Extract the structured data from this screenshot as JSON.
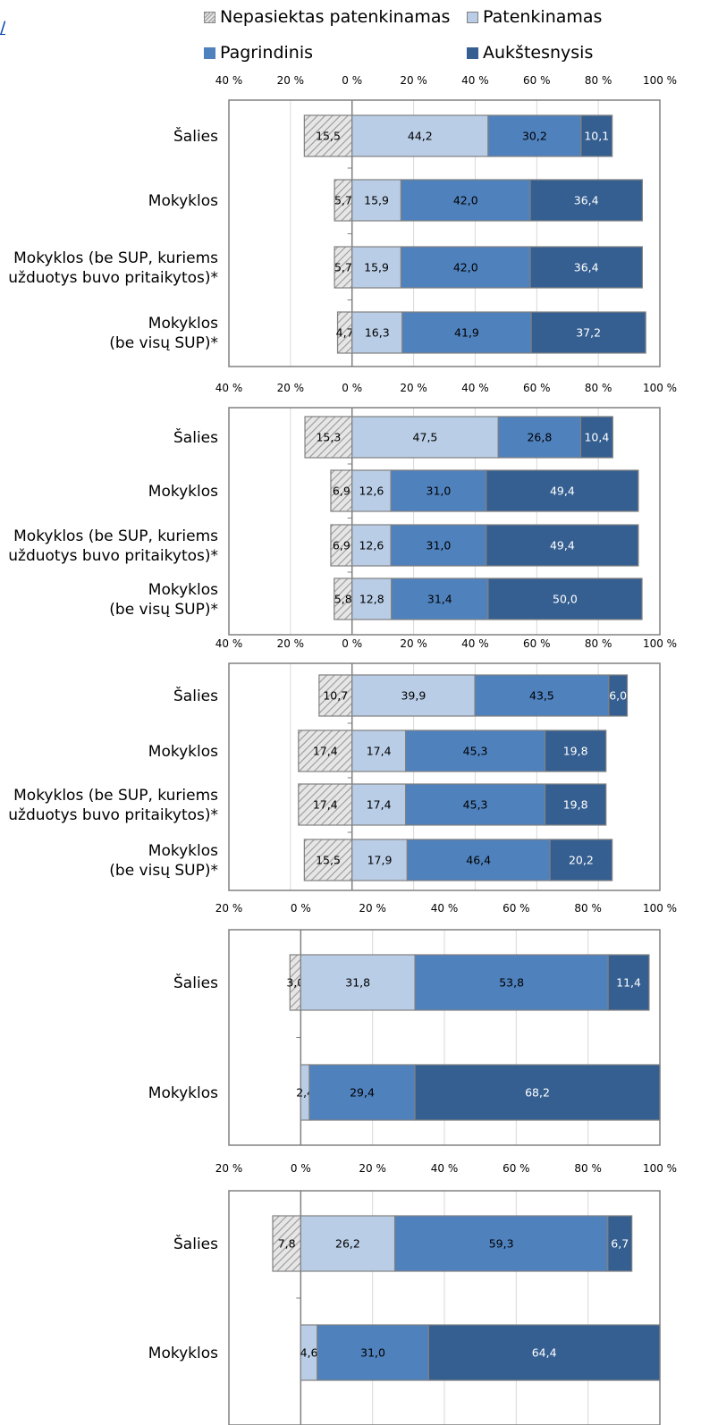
{
  "legend": {
    "items": [
      {
        "label": "Nepasiektas patenkinamas",
        "key": "nep"
      },
      {
        "label": "Patenkinamas",
        "key": "pat"
      },
      {
        "label": "Pagrindinis",
        "key": "pag"
      },
      {
        "label": "Aukštesnysis",
        "key": "auk"
      }
    ]
  },
  "corner_link_text": "/",
  "colors": {
    "nep_fill": "#e6e6e6",
    "nep_hatch": "#9a9a9a",
    "pat": "#b9cde6",
    "pag": "#4f81bd",
    "auk": "#355f91",
    "border": "#808080"
  },
  "chart_data": [
    {
      "type": "bar",
      "orientation": "horizontal",
      "stacked": true,
      "xlim": [
        -40,
        100
      ],
      "x_ticks": [
        -40,
        -20,
        0,
        20,
        40,
        60,
        80,
        100
      ],
      "tick_labels": [
        "40 %",
        "20 %",
        "0 %",
        "20 %",
        "40 %",
        "60 %",
        "80 %",
        "100 %"
      ],
      "categories": [
        "Šalies",
        "Mokyklos",
        "Mokyklos (be SUP, kuriems\nužduotys buvo pritaikytos)*",
        "Mokyklos\n(be visų SUP)*"
      ],
      "series": [
        {
          "name": "Nepasiektas patenkinamas",
          "values": [
            15.5,
            5.7,
            5.7,
            4.7
          ],
          "labels": [
            "15,5",
            "5,7",
            "5,7",
            "4,7"
          ]
        },
        {
          "name": "Patenkinamas",
          "values": [
            44.2,
            15.9,
            15.9,
            16.3
          ],
          "labels": [
            "44,2",
            "15,9",
            "15,9",
            "16,3"
          ]
        },
        {
          "name": "Pagrindinis",
          "values": [
            30.2,
            42.0,
            42.0,
            41.9
          ],
          "labels": [
            "30,2",
            "42,0",
            "42,0",
            "41,9"
          ]
        },
        {
          "name": "Aukštesnysis",
          "values": [
            10.1,
            36.4,
            36.4,
            37.2
          ],
          "labels": [
            "10,1",
            "36,4",
            "36,4",
            "37,2"
          ]
        }
      ]
    },
    {
      "type": "bar",
      "orientation": "horizontal",
      "stacked": true,
      "xlim": [
        -40,
        100
      ],
      "x_ticks": [
        -40,
        -20,
        0,
        20,
        40,
        60,
        80,
        100
      ],
      "tick_labels": [
        "40 %",
        "20 %",
        "0 %",
        "20 %",
        "40 %",
        "60 %",
        "80 %",
        "100 %"
      ],
      "categories": [
        "Šalies",
        "Mokyklos",
        "Mokyklos (be SUP, kuriems\nužduotys buvo pritaikytos)*",
        "Mokyklos\n(be visų SUP)*"
      ],
      "series": [
        {
          "name": "Nepasiektas patenkinamas",
          "values": [
            15.3,
            6.9,
            6.9,
            5.8
          ],
          "labels": [
            "15,3",
            "6,9",
            "6,9",
            "5,8"
          ]
        },
        {
          "name": "Patenkinamas",
          "values": [
            47.5,
            12.6,
            12.6,
            12.8
          ],
          "labels": [
            "47,5",
            "12,6",
            "12,6",
            "12,8"
          ]
        },
        {
          "name": "Pagrindinis",
          "values": [
            26.8,
            31.0,
            31.0,
            31.4
          ],
          "labels": [
            "26,8",
            "31,0",
            "31,0",
            "31,4"
          ]
        },
        {
          "name": "Aukštesnysis",
          "values": [
            10.4,
            49.4,
            49.4,
            50.0
          ],
          "labels": [
            "10,4",
            "49,4",
            "49,4",
            "50,0"
          ]
        }
      ]
    },
    {
      "type": "bar",
      "orientation": "horizontal",
      "stacked": true,
      "xlim": [
        -40,
        100
      ],
      "x_ticks": [
        -40,
        -20,
        0,
        20,
        40,
        60,
        80,
        100
      ],
      "tick_labels": [
        "40 %",
        "20 %",
        "0 %",
        "20 %",
        "40 %",
        "60 %",
        "80 %",
        "100 %"
      ],
      "categories": [
        "Šalies",
        "Mokyklos",
        "Mokyklos (be SUP, kuriems\nužduotys buvo pritaikytos)*",
        "Mokyklos\n(be visų SUP)*"
      ],
      "series": [
        {
          "name": "Nepasiektas patenkinamas",
          "values": [
            10.7,
            17.4,
            17.4,
            15.5
          ],
          "labels": [
            "10,7",
            "17,4",
            "17,4",
            "15,5"
          ]
        },
        {
          "name": "Patenkinamas",
          "values": [
            39.9,
            17.4,
            17.4,
            17.9
          ],
          "labels": [
            "39,9",
            "17,4",
            "17,4",
            "17,9"
          ]
        },
        {
          "name": "Pagrindinis",
          "values": [
            43.5,
            45.3,
            45.3,
            46.4
          ],
          "labels": [
            "43,5",
            "45,3",
            "45,3",
            "46,4"
          ]
        },
        {
          "name": "Aukštesnysis",
          "values": [
            6.0,
            19.8,
            19.8,
            20.2
          ],
          "labels": [
            "6,0",
            "19,8",
            "19,8",
            "20,2"
          ]
        }
      ]
    },
    {
      "type": "bar",
      "orientation": "horizontal",
      "stacked": true,
      "xlim": [
        -20,
        100
      ],
      "x_ticks": [
        -20,
        0,
        20,
        40,
        60,
        80,
        100
      ],
      "tick_labels": [
        "20 %",
        "0 %",
        "20 %",
        "40 %",
        "60 %",
        "80 %",
        "100 %"
      ],
      "categories": [
        "Šalies",
        "Mokyklos"
      ],
      "series": [
        {
          "name": "Nepasiektas patenkinamas",
          "values": [
            3.0,
            0
          ],
          "labels": [
            "3,0",
            ""
          ]
        },
        {
          "name": "Patenkinamas",
          "values": [
            31.8,
            2.4
          ],
          "labels": [
            "31,8",
            "2,4"
          ]
        },
        {
          "name": "Pagrindinis",
          "values": [
            53.8,
            29.4
          ],
          "labels": [
            "53,8",
            "29,4"
          ]
        },
        {
          "name": "Aukštesnysis",
          "values": [
            11.4,
            68.2
          ],
          "labels": [
            "11,4",
            "68,2"
          ]
        }
      ]
    },
    {
      "type": "bar",
      "orientation": "horizontal",
      "stacked": true,
      "xlim": [
        -20,
        100
      ],
      "x_ticks": [
        -20,
        0,
        20,
        40,
        60,
        80,
        100
      ],
      "tick_labels": [
        "20 %",
        "0 %",
        "20 %",
        "40 %",
        "60 %",
        "80 %",
        "100 %"
      ],
      "categories": [
        "Šalies",
        "Mokyklos"
      ],
      "series": [
        {
          "name": "Nepasiektas patenkinamas",
          "values": [
            7.8,
            0
          ],
          "labels": [
            "7,8",
            ""
          ]
        },
        {
          "name": "Patenkinamas",
          "values": [
            26.2,
            4.6
          ],
          "labels": [
            "26,2",
            "4,6"
          ]
        },
        {
          "name": "Pagrindinis",
          "values": [
            59.3,
            31.0
          ],
          "labels": [
            "59,3",
            "31,0"
          ]
        },
        {
          "name": "Aukštesnysis",
          "values": [
            6.7,
            64.4
          ],
          "labels": [
            "6,7",
            "64,4"
          ]
        }
      ]
    }
  ]
}
